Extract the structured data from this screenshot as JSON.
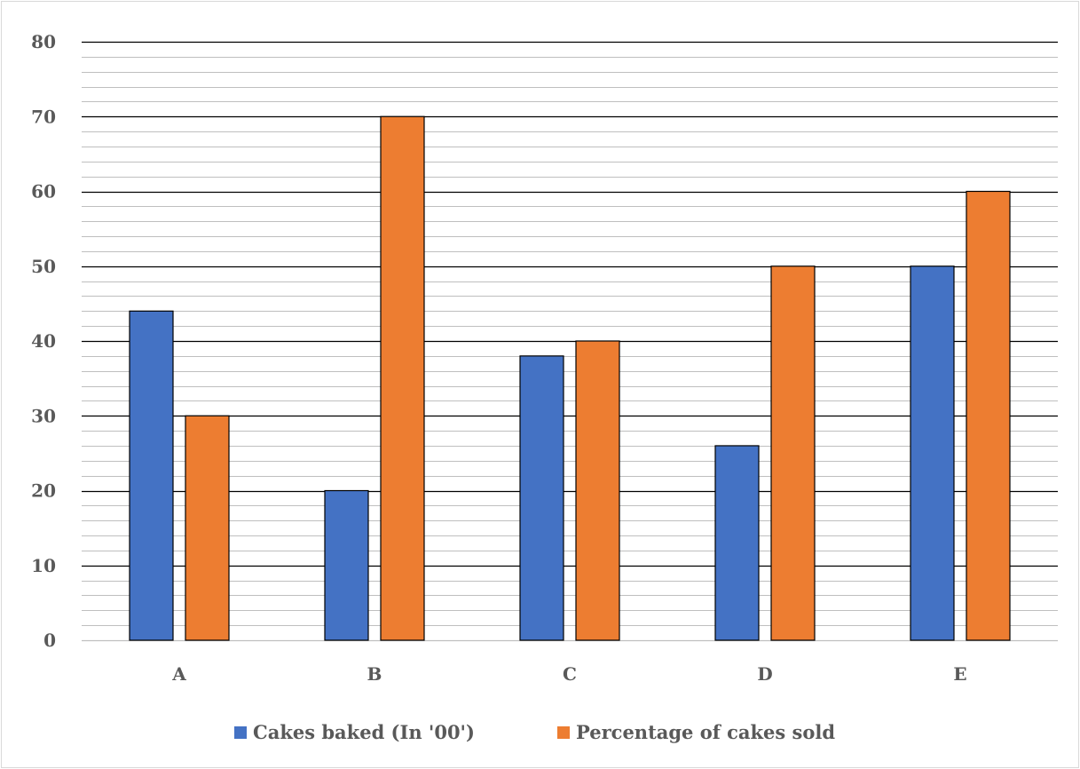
{
  "chart_data": {
    "type": "bar",
    "categories": [
      "A",
      "B",
      "C",
      "D",
      "E"
    ],
    "series": [
      {
        "name": "Cakes baked (In '00')",
        "values": [
          44,
          20,
          38,
          26,
          50
        ],
        "color": "#4472c4"
      },
      {
        "name": "Percentage of cakes sold",
        "values": [
          30,
          70,
          40,
          50,
          60
        ],
        "color": "#ed7d31"
      }
    ],
    "ylim": [
      0,
      80
    ],
    "y_ticks": [
      0,
      10,
      20,
      30,
      40,
      50,
      60,
      70,
      80
    ],
    "minor_step": 2,
    "grid": true,
    "legend_position": "bottom",
    "colors": {
      "major_grid": "#000000",
      "minor_grid": "#bfbfbf",
      "axis_text": "#595959"
    }
  }
}
